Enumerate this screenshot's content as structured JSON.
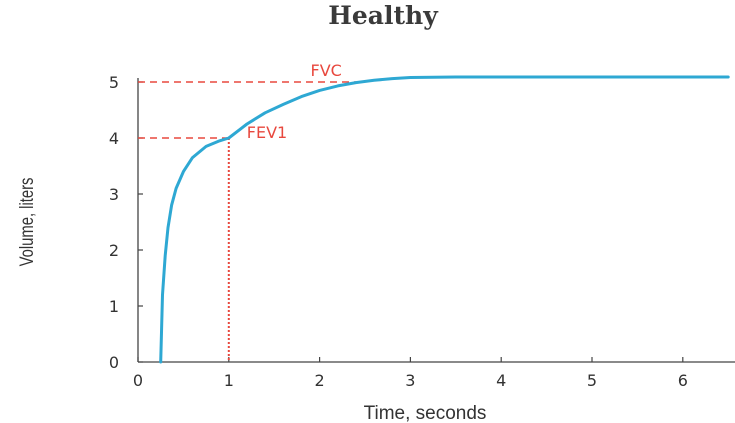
{
  "chart_data": {
    "type": "line",
    "title": "Healthy",
    "xlabel": "Time, seconds",
    "ylabel": "Volume, liters",
    "xlim": [
      0,
      6.5
    ],
    "ylim": [
      0,
      5
    ],
    "x_ticks": [
      0,
      1,
      2,
      3,
      4,
      5,
      6
    ],
    "y_ticks": [
      0,
      1,
      2,
      3,
      4,
      5
    ],
    "grid": false,
    "series": [
      {
        "color": "#2ea8d3",
        "x": [
          0.25,
          0.26,
          0.27,
          0.3,
          0.33,
          0.37,
          0.42,
          0.5,
          0.6,
          0.75,
          0.9,
          1.0,
          1.2,
          1.4,
          1.6,
          1.8,
          2.0,
          2.2,
          2.4,
          2.6,
          2.8,
          3.0,
          3.5,
          4.0,
          5.0,
          6.0,
          6.5
        ],
        "y": [
          0,
          0.6,
          1.2,
          1.9,
          2.4,
          2.8,
          3.1,
          3.4,
          3.65,
          3.85,
          3.95,
          4.0,
          4.25,
          4.45,
          4.6,
          4.74,
          4.85,
          4.93,
          4.99,
          5.03,
          5.06,
          5.08,
          5.09,
          5.09,
          5.09,
          5.09,
          5.09
        ]
      }
    ],
    "annotations": [
      {
        "text": "FEV1",
        "x": 1,
        "y": 4,
        "color": "#e8483e"
      },
      {
        "text": "FVC",
        "x": 2.4,
        "y": 5,
        "color": "#e8483e"
      }
    ]
  }
}
